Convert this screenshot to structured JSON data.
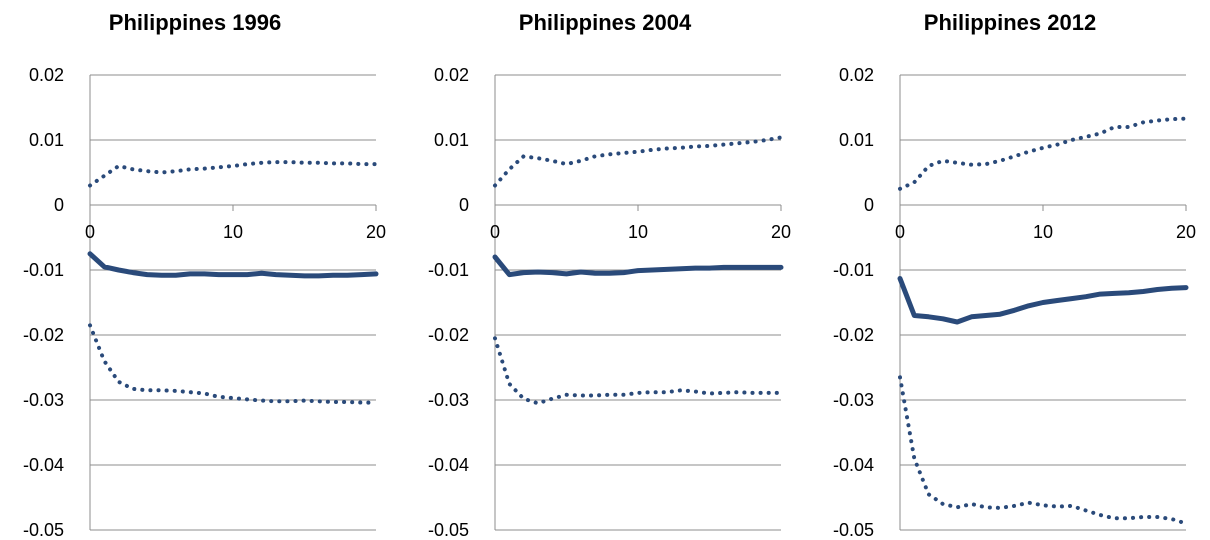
{
  "chart_data": [
    {
      "type": "line",
      "title": "Philippines 1996",
      "xlim": [
        0,
        20
      ],
      "ylim": [
        -0.05,
        0.02
      ],
      "x_ticks": [
        0,
        10,
        20
      ],
      "y_ticks": [
        0.02,
        0.01,
        0,
        -0.01,
        -0.02,
        -0.03,
        -0.04,
        -0.05
      ],
      "x_tick_labels": [
        "0",
        "10",
        "20"
      ],
      "y_tick_labels": [
        "0.02",
        "0.01",
        "0",
        "-0.01",
        "-0.02",
        "-0.03",
        "-0.04",
        "-0.05"
      ],
      "grid": "horizontal",
      "series_color": "#2a4a7a",
      "series": [
        {
          "style": "dotted",
          "x": [
            0,
            1,
            2,
            3,
            4,
            5,
            6,
            7,
            8,
            9,
            10,
            11,
            12,
            13,
            14,
            15,
            16,
            17,
            18,
            19,
            20
          ],
          "values": [
            0.003,
            0.0045,
            0.006,
            0.0055,
            0.0052,
            0.005,
            0.0052,
            0.0055,
            0.0056,
            0.0058,
            0.006,
            0.0063,
            0.0065,
            0.0066,
            0.0066,
            0.0065,
            0.0065,
            0.0064,
            0.0064,
            0.0063,
            0.0063
          ]
        },
        {
          "style": "solid",
          "x": [
            0,
            1,
            2,
            3,
            4,
            5,
            6,
            7,
            8,
            9,
            10,
            11,
            12,
            13,
            14,
            15,
            16,
            17,
            18,
            19,
            20
          ],
          "values": [
            -0.0075,
            -0.0095,
            -0.01,
            -0.0104,
            -0.0107,
            -0.0108,
            -0.0108,
            -0.0106,
            -0.0106,
            -0.0107,
            -0.0107,
            -0.0107,
            -0.0105,
            -0.0107,
            -0.0108,
            -0.0109,
            -0.0109,
            -0.0108,
            -0.0108,
            -0.0107,
            -0.0106
          ]
        },
        {
          "style": "dotted",
          "x": [
            0,
            1,
            2,
            3,
            4,
            5,
            6,
            7,
            8,
            9,
            10,
            11,
            12,
            13,
            14,
            15,
            16,
            17,
            18,
            19,
            20
          ],
          "values": [
            -0.0185,
            -0.024,
            -0.0272,
            -0.0283,
            -0.0285,
            -0.0285,
            -0.0286,
            -0.0288,
            -0.029,
            -0.0295,
            -0.0297,
            -0.0299,
            -0.0301,
            -0.0302,
            -0.0302,
            -0.0301,
            -0.0302,
            -0.0303,
            -0.0303,
            -0.0304,
            -0.0304
          ]
        }
      ]
    },
    {
      "type": "line",
      "title": "Philippines 2004",
      "xlim": [
        0,
        20
      ],
      "ylim": [
        -0.05,
        0.02
      ],
      "x_ticks": [
        0,
        10,
        20
      ],
      "y_ticks": [
        0.02,
        0.01,
        0,
        -0.01,
        -0.02,
        -0.03,
        -0.04,
        -0.05
      ],
      "x_tick_labels": [
        "0",
        "10",
        "20"
      ],
      "y_tick_labels": [
        "0.02",
        "0.01",
        "0",
        "-0.01",
        "-0.02",
        "-0.03",
        "-0.04",
        "-0.05"
      ],
      "grid": "horizontal",
      "series_color": "#2a4a7a",
      "series": [
        {
          "style": "dotted",
          "x": [
            0,
            1,
            2,
            3,
            4,
            5,
            6,
            7,
            8,
            9,
            10,
            11,
            12,
            13,
            14,
            15,
            16,
            17,
            18,
            19,
            20
          ],
          "values": [
            0.003,
            0.0055,
            0.0075,
            0.0072,
            0.0068,
            0.0063,
            0.0068,
            0.0075,
            0.0078,
            0.008,
            0.0082,
            0.0085,
            0.0087,
            0.0088,
            0.009,
            0.0091,
            0.0093,
            0.0095,
            0.0097,
            0.01,
            0.0104
          ]
        },
        {
          "style": "solid",
          "x": [
            0,
            1,
            2,
            3,
            4,
            5,
            6,
            7,
            8,
            9,
            10,
            11,
            12,
            13,
            14,
            15,
            16,
            17,
            18,
            19,
            20
          ],
          "values": [
            -0.008,
            -0.0107,
            -0.0104,
            -0.0103,
            -0.0104,
            -0.0106,
            -0.0103,
            -0.0105,
            -0.0105,
            -0.0104,
            -0.0101,
            -0.01,
            -0.0099,
            -0.0098,
            -0.0097,
            -0.0097,
            -0.0096,
            -0.0096,
            -0.0096,
            -0.0096,
            -0.0096
          ]
        },
        {
          "style": "dotted",
          "x": [
            0,
            1,
            2,
            3,
            4,
            5,
            6,
            7,
            8,
            9,
            10,
            11,
            12,
            13,
            14,
            15,
            16,
            17,
            18,
            19,
            20
          ],
          "values": [
            -0.0205,
            -0.0275,
            -0.0298,
            -0.0305,
            -0.0298,
            -0.0292,
            -0.0293,
            -0.0293,
            -0.0292,
            -0.0292,
            -0.0289,
            -0.0288,
            -0.0288,
            -0.0285,
            -0.0287,
            -0.029,
            -0.0289,
            -0.0288,
            -0.0289,
            -0.0289,
            -0.0289
          ]
        }
      ]
    },
    {
      "type": "line",
      "title": "Philippines 2012",
      "xlim": [
        0,
        20
      ],
      "ylim": [
        -0.05,
        0.02
      ],
      "x_ticks": [
        0,
        10,
        20
      ],
      "y_ticks": [
        0.02,
        0.01,
        0,
        -0.01,
        -0.02,
        -0.03,
        -0.04,
        -0.05
      ],
      "x_tick_labels": [
        "0",
        "10",
        "20"
      ],
      "y_tick_labels": [
        "0.02",
        "0.01",
        "0",
        "-0.01",
        "-0.02",
        "-0.03",
        "-0.04",
        "-0.05"
      ],
      "grid": "horizontal",
      "series_color": "#2a4a7a",
      "series": [
        {
          "style": "dotted",
          "x": [
            0,
            1,
            2,
            3,
            4,
            5,
            6,
            7,
            8,
            9,
            10,
            11,
            12,
            13,
            14,
            15,
            16,
            17,
            18,
            19,
            20
          ],
          "values": [
            0.0025,
            0.0035,
            0.006,
            0.0068,
            0.0065,
            0.0062,
            0.0063,
            0.0068,
            0.0075,
            0.0082,
            0.0088,
            0.0093,
            0.01,
            0.0105,
            0.011,
            0.012,
            0.012,
            0.0127,
            0.013,
            0.0132,
            0.0133
          ]
        },
        {
          "style": "solid",
          "x": [
            0,
            1,
            2,
            3,
            4,
            5,
            6,
            7,
            8,
            9,
            10,
            11,
            12,
            13,
            14,
            15,
            16,
            17,
            18,
            19,
            20
          ],
          "values": [
            -0.0113,
            -0.017,
            -0.0172,
            -0.0175,
            -0.018,
            -0.0172,
            -0.017,
            -0.0168,
            -0.0162,
            -0.0155,
            -0.015,
            -0.0147,
            -0.0144,
            -0.0141,
            -0.0137,
            -0.0136,
            -0.0135,
            -0.0133,
            -0.013,
            -0.0128,
            -0.0127
          ]
        },
        {
          "style": "dotted",
          "x": [
            0,
            1,
            2,
            3,
            4,
            5,
            6,
            7,
            8,
            9,
            10,
            11,
            12,
            13,
            14,
            15,
            16,
            17,
            18,
            19,
            20
          ],
          "values": [
            -0.0265,
            -0.039,
            -0.0445,
            -0.046,
            -0.0465,
            -0.046,
            -0.0465,
            -0.0466,
            -0.0463,
            -0.0458,
            -0.0462,
            -0.0464,
            -0.0463,
            -0.047,
            -0.0477,
            -0.0482,
            -0.0482,
            -0.048,
            -0.048,
            -0.0483,
            -0.049
          ]
        }
      ]
    }
  ]
}
